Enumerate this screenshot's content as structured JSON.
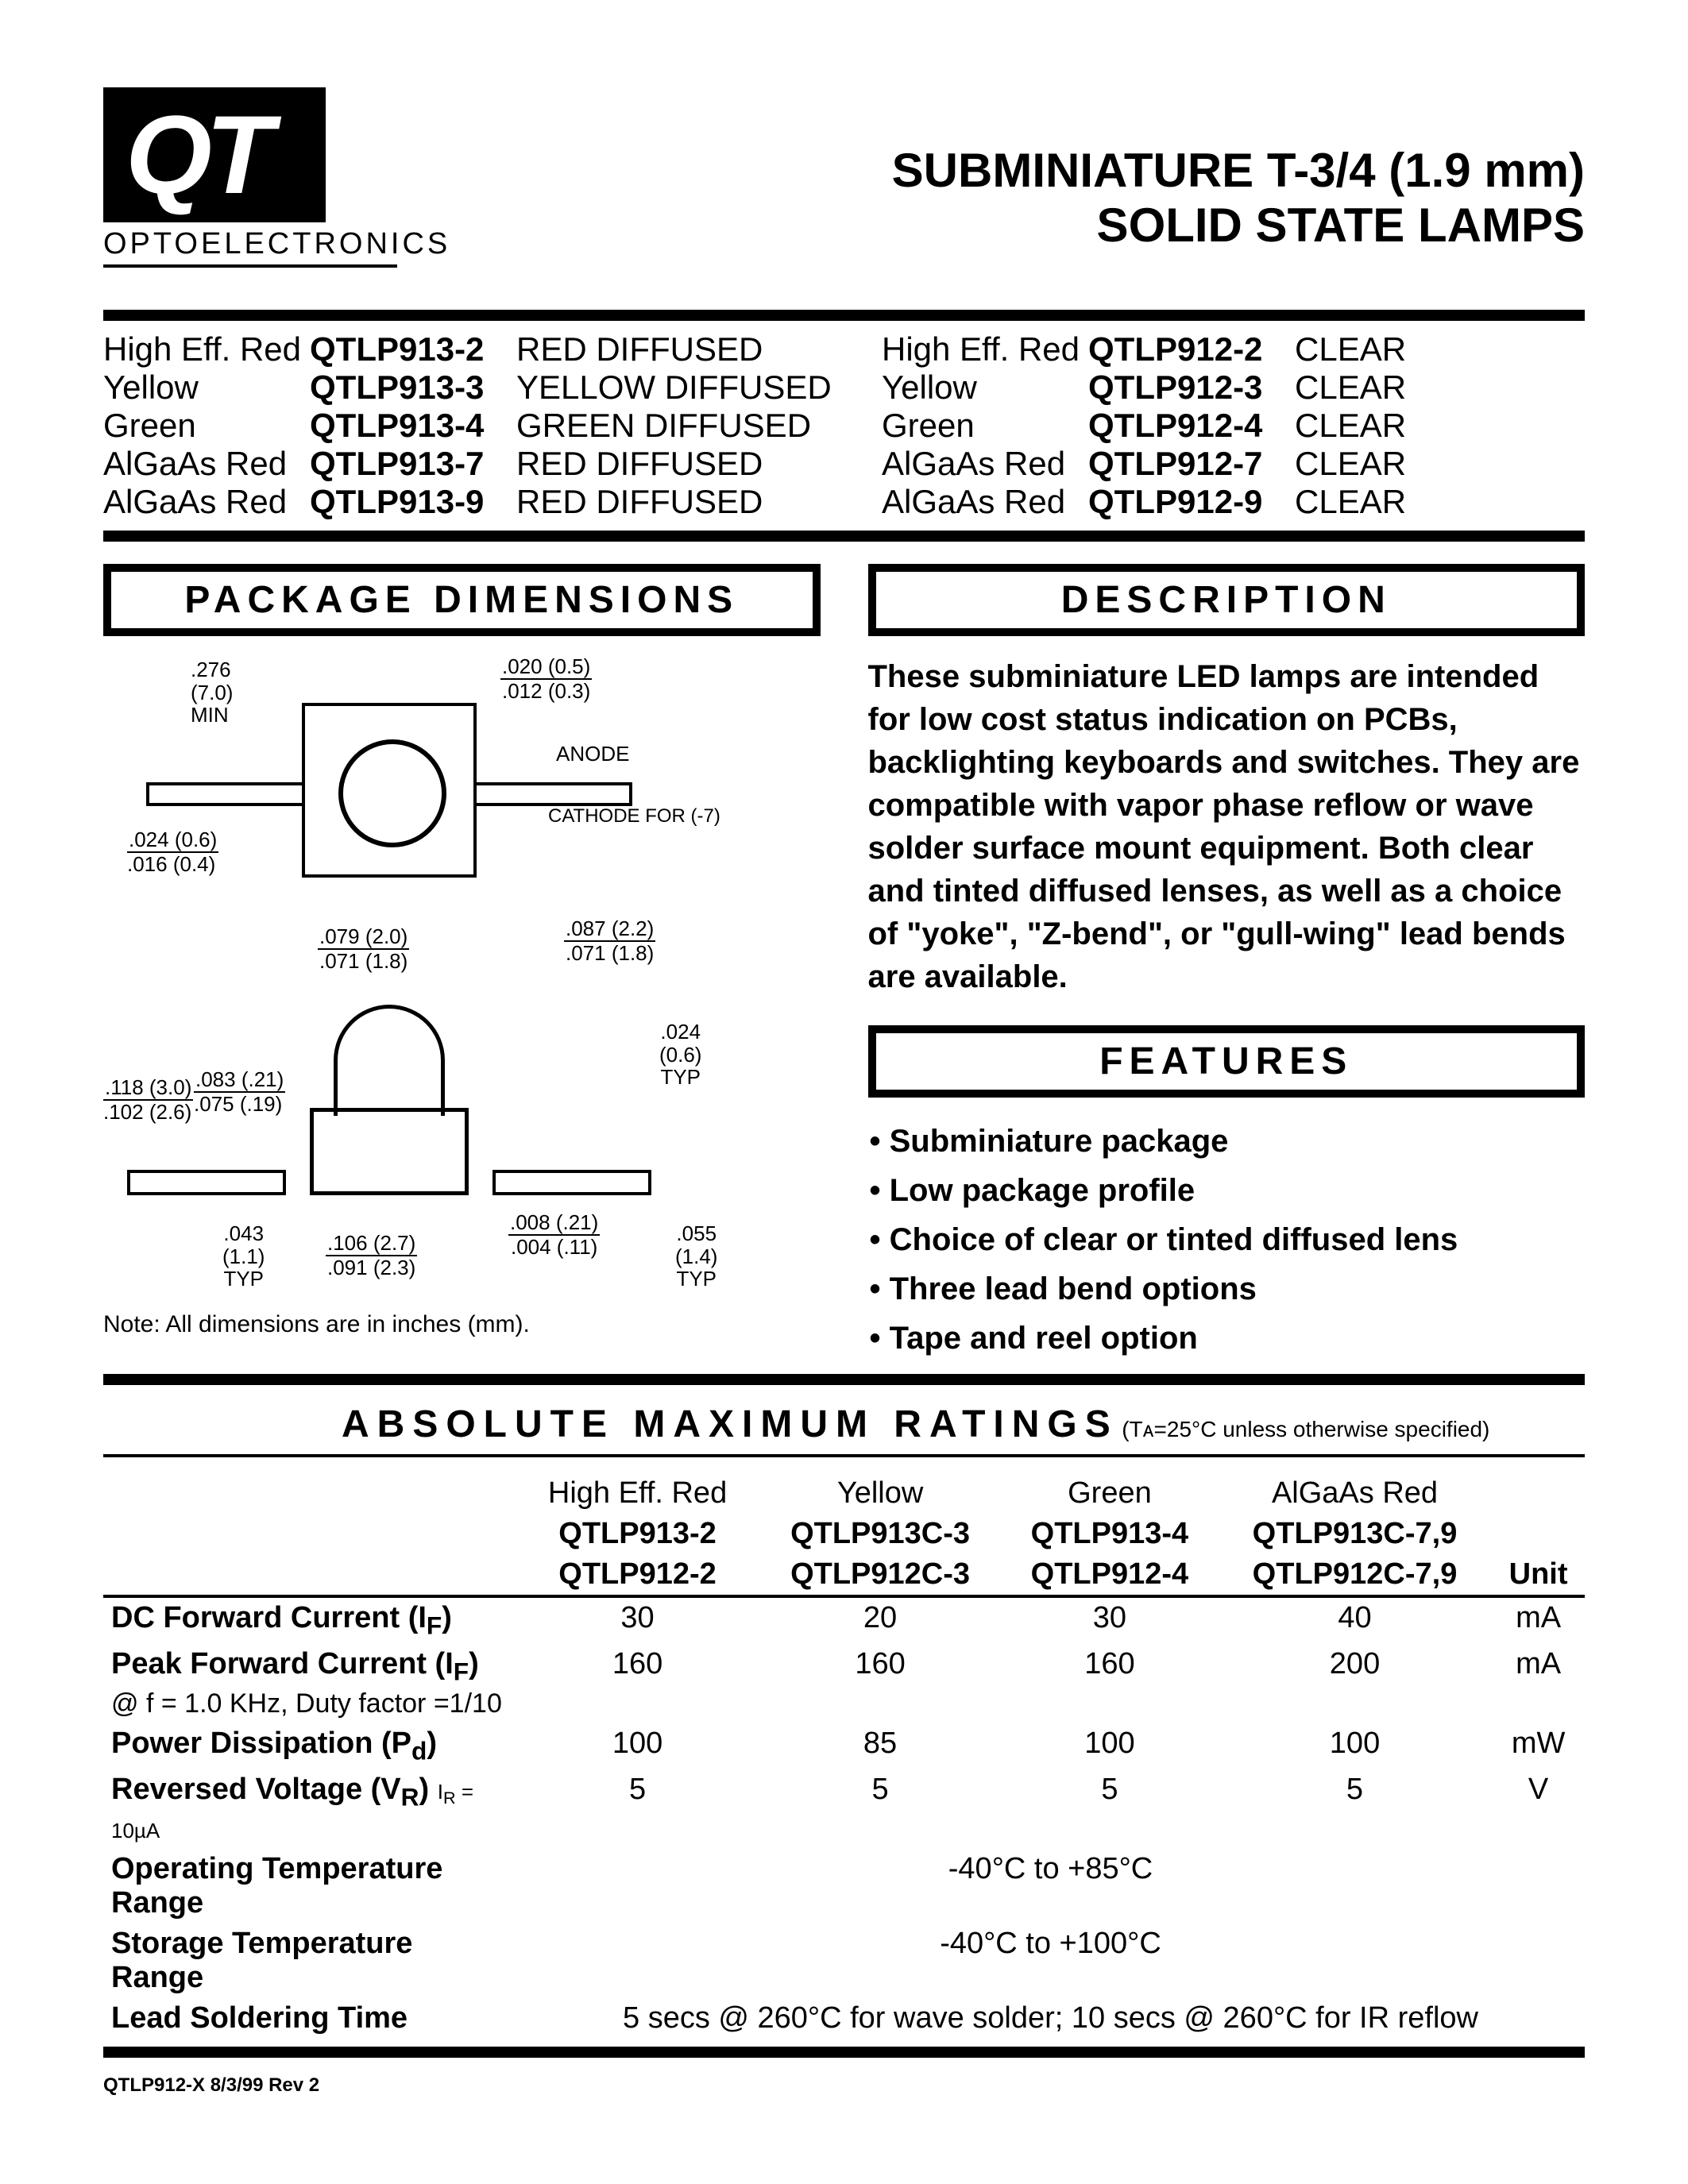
{
  "logo": {
    "text": "QT",
    "subtitle": "OPTOELECTRONICS"
  },
  "title": {
    "line1": "SUBMINIATURE T-3/4  (1.9 mm)",
    "line2": "SOLID STATE LAMPS"
  },
  "parts_left": [
    {
      "color": "High Eff. Red",
      "pn": "QTLP913-2",
      "lens": "RED DIFFUSED"
    },
    {
      "color": "Yellow",
      "pn": "QTLP913-3",
      "lens": "YELLOW DIFFUSED"
    },
    {
      "color": "Green",
      "pn": "QTLP913-4",
      "lens": "GREEN DIFFUSED"
    },
    {
      "color": "AlGaAs Red",
      "pn": "QTLP913-7",
      "lens": "RED DIFFUSED"
    },
    {
      "color": "AlGaAs Red",
      "pn": "QTLP913-9",
      "lens": "RED DIFFUSED"
    }
  ],
  "parts_right": [
    {
      "color": "High Eff. Red",
      "pn": "QTLP912-2",
      "lens": "CLEAR"
    },
    {
      "color": "Yellow",
      "pn": "QTLP912-3",
      "lens": "CLEAR"
    },
    {
      "color": "Green",
      "pn": "QTLP912-4",
      "lens": "CLEAR"
    },
    {
      "color": "AlGaAs Red",
      "pn": "QTLP912-7",
      "lens": "CLEAR"
    },
    {
      "color": "AlGaAs Red",
      "pn": "QTLP912-9",
      "lens": "CLEAR"
    }
  ],
  "sections": {
    "package": "PACKAGE  DIMENSIONS",
    "description": "DESCRIPTION",
    "features": "FEATURES",
    "ratings": "ABSOLUTE   MAXIMUM   RATINGS",
    "ratings_cond": "(Tᴀ=25°C unless otherwise specified)"
  },
  "description_text": "These subminiature LED lamps are intended for low cost status indication on PCBs, backlighting keyboards and switches.  They are compatible with vapor phase reflow or wave solder surface mount equipment.  Both clear and tinted diffused lenses, as well as a choice of \"yoke\", \"Z-bend\", or \"gull-wing\" lead bends are available.",
  "features": [
    "Subminiature package",
    "Low package profile",
    "Choice of clear or tinted diffused lens",
    "Three lead bend options",
    "Tape and reel option"
  ],
  "dimensions": {
    "w276": {
      "top": ".276",
      "bot": "(7.0)",
      "extra": "MIN"
    },
    "t020": {
      "top": ".020 (0.5)",
      "bot": ".012 (0.3)"
    },
    "anode": "ANODE",
    "cathode": "CATHODE FOR (-7)",
    "t024": {
      "top": ".024 (0.6)",
      "bot": ".016 (0.4)"
    },
    "w079": {
      "top": ".079 (2.0)",
      "bot": ".071 (1.8)"
    },
    "w087": {
      "top": ".087 (2.2)",
      "bot": ".071 (1.8)"
    },
    "h083": {
      "top": ".083 (.21)",
      "bot": ".075 (.19)"
    },
    "h118": {
      "top": ".118 (3.0)",
      "bot": ".102 (2.6)"
    },
    "t024b": {
      "top": ".024",
      "bot": "(0.6)",
      "extra": "TYP"
    },
    "w106": {
      "top": ".106 (2.7)",
      "bot": ".091 (2.3)"
    },
    "t008": {
      "top": ".008 (.21)",
      "bot": ".004 (.11)"
    },
    "h043": {
      "top": ".043",
      "bot": "(1.1)",
      "extra": "TYP"
    },
    "h055": {
      "top": ".055",
      "bot": "(1.4)",
      "extra": "TYP"
    },
    "note": "Note: All dimensions are in inches (mm)."
  },
  "ratings": {
    "head1": [
      "",
      "High Eff. Red",
      "Yellow",
      "Green",
      "AlGaAs Red",
      ""
    ],
    "head2": [
      "",
      "QTLP913-2",
      "QTLP913C-3",
      "QTLP913-4",
      "QTLP913C-7,9",
      ""
    ],
    "head3": [
      "",
      "QTLP912-2",
      "QTLP912C-3",
      "QTLP912-4",
      "QTLP912C-7,9",
      "Unit"
    ],
    "rows": [
      {
        "param": "DC Forward Current (Iᴿ)",
        "param_html": "DC Forward Current (I<sub>F</sub>)",
        "vals": [
          "30",
          "20",
          "30",
          "40"
        ],
        "unit": "mA"
      },
      {
        "param": "Peak Forward Current (Iᴿ)",
        "param_html": "Peak Forward Current (I<sub>F</sub>)",
        "note": "@ f = 1.0 KHz, Duty factor =1/10",
        "vals": [
          "160",
          "160",
          "160",
          "200"
        ],
        "unit": "mA"
      },
      {
        "param": "Power Dissipation (Pᵈ)",
        "param_html": "Power Dissipation (P<sub>d</sub>)",
        "vals": [
          "100",
          "85",
          "100",
          "100"
        ],
        "unit": "mW"
      },
      {
        "param": "Reversed Voltage (Vᴿ) Iᴿ=10µA",
        "param_html": "Reversed Voltage (V<sub>R</sub>) <span style='font-size:26px;font-weight:400;'>I<sub>R</sub> = 10µA</span>",
        "vals": [
          "5",
          "5",
          "5",
          "5"
        ],
        "unit": "V"
      }
    ],
    "op_temp": {
      "label": "Operating Temperature Range",
      "value": "-40°C to +85°C"
    },
    "stor_temp": {
      "label": "Storage Temperature Range",
      "value": "-40°C to +100°C"
    },
    "solder": {
      "label": "Lead Soldering Time",
      "value": "5 secs @ 260°C for wave solder; 10 secs @ 260°C for IR reflow"
    }
  },
  "footer": "QTLP912-X    8/3/99    Rev 2"
}
